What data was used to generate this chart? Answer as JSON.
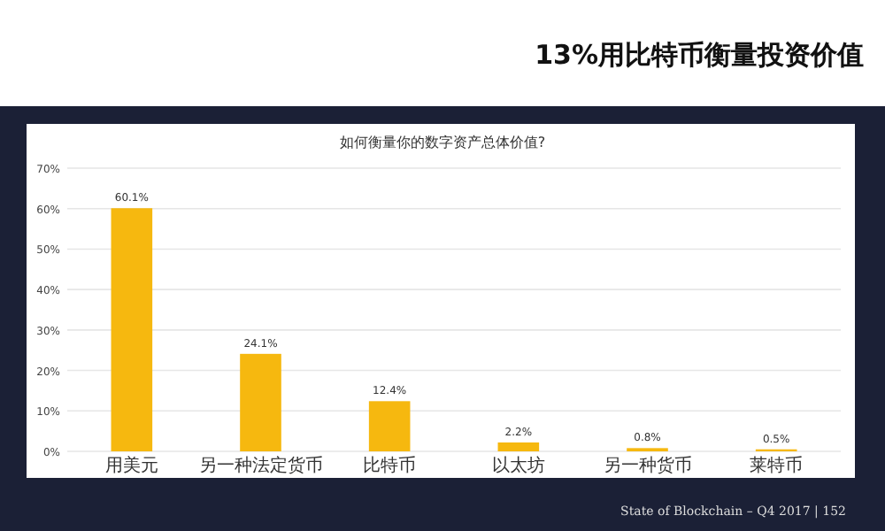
{
  "chart_data": {
    "type": "bar",
    "title": "如何衡量你的数字资产总体价值?",
    "categories": [
      "用美元",
      "另一种法定货币",
      "比特币",
      "以太坊",
      "另一种货币",
      "莱特币"
    ],
    "values": [
      60.1,
      24.1,
      12.4,
      2.2,
      0.8,
      0.5
    ],
    "value_labels": [
      "60.1%",
      "24.1%",
      "12.4%",
      "2.2%",
      "0.8%",
      "0.5%"
    ],
    "color": "#f6b80f",
    "ylim": [
      0,
      70
    ],
    "yticks": [
      {
        "value": 0,
        "label": "0%"
      },
      {
        "value": 10,
        "label": "10%"
      },
      {
        "value": 20,
        "label": "20%"
      },
      {
        "value": 30,
        "label": "30%"
      },
      {
        "value": 40,
        "label": "40%"
      },
      {
        "value": 50,
        "label": "50%"
      },
      {
        "value": 60,
        "label": "60%"
      },
      {
        "value": 70,
        "label": "70%"
      }
    ],
    "grid": "y",
    "annotations": [
      "13%用比特币衡量投资价值",
      "State of Blockchain – Q4 2017 | 152"
    ]
  }
}
